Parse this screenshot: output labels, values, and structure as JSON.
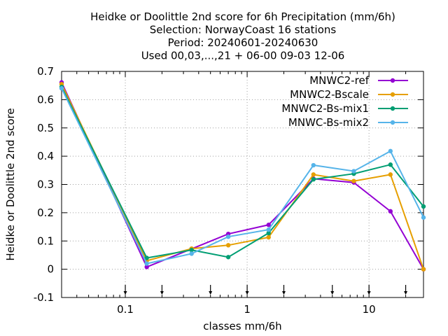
{
  "chart_data": {
    "type": "line",
    "title_lines": [
      "Heidke or Doolittle 2nd score  for 6h Precipitation (mm/6h)",
      "Selection: NorwayCoast     16 stations",
      "Period: 20240601-20240630",
      "Used 00,03,...,21 + 06-00 09-03 12-06"
    ],
    "xlabel": "classes mm/6h",
    "ylabel": "Heidke or Doolittle 2nd score",
    "x_scale": "log",
    "xlim": [
      0.03,
      28
    ],
    "ylim": [
      -0.1,
      0.7
    ],
    "y_ticks": [
      "-0.1",
      "0",
      "0.1",
      "0.2",
      "0.3",
      "0.4",
      "0.5",
      "0.6",
      "0.7"
    ],
    "x_ticks": [
      "0.1",
      "1",
      "10"
    ],
    "grid": true,
    "legend_position": "top-right",
    "class_markers_x": [
      0.1,
      0.2,
      0.5,
      1,
      2,
      5,
      10,
      20,
      50
    ],
    "x": [
      0.03,
      0.15,
      0.35,
      0.7,
      1.5,
      3.5,
      7.5,
      15,
      28
    ],
    "series": [
      {
        "name": "MNWC2-ref",
        "color": "#9400d3",
        "values": [
          0.661,
          0.008,
          0.072,
          0.125,
          0.157,
          0.32,
          0.307,
          0.205,
          0.0
        ]
      },
      {
        "name": "MNWC2-Bscale",
        "color": "#e69f00",
        "values": [
          0.655,
          0.03,
          0.073,
          0.085,
          0.113,
          0.335,
          0.312,
          0.335,
          0.0
        ]
      },
      {
        "name": "MNWC2-Bs-mix1",
        "color": "#009e73",
        "values": [
          0.645,
          0.04,
          0.068,
          0.043,
          0.128,
          0.318,
          0.338,
          0.37,
          0.222
        ]
      },
      {
        "name": "MNWC-Bs-mix2",
        "color": "#56b4e9",
        "values": [
          0.64,
          0.02,
          0.055,
          0.115,
          0.14,
          0.368,
          0.347,
          0.418,
          0.183
        ]
      }
    ]
  }
}
